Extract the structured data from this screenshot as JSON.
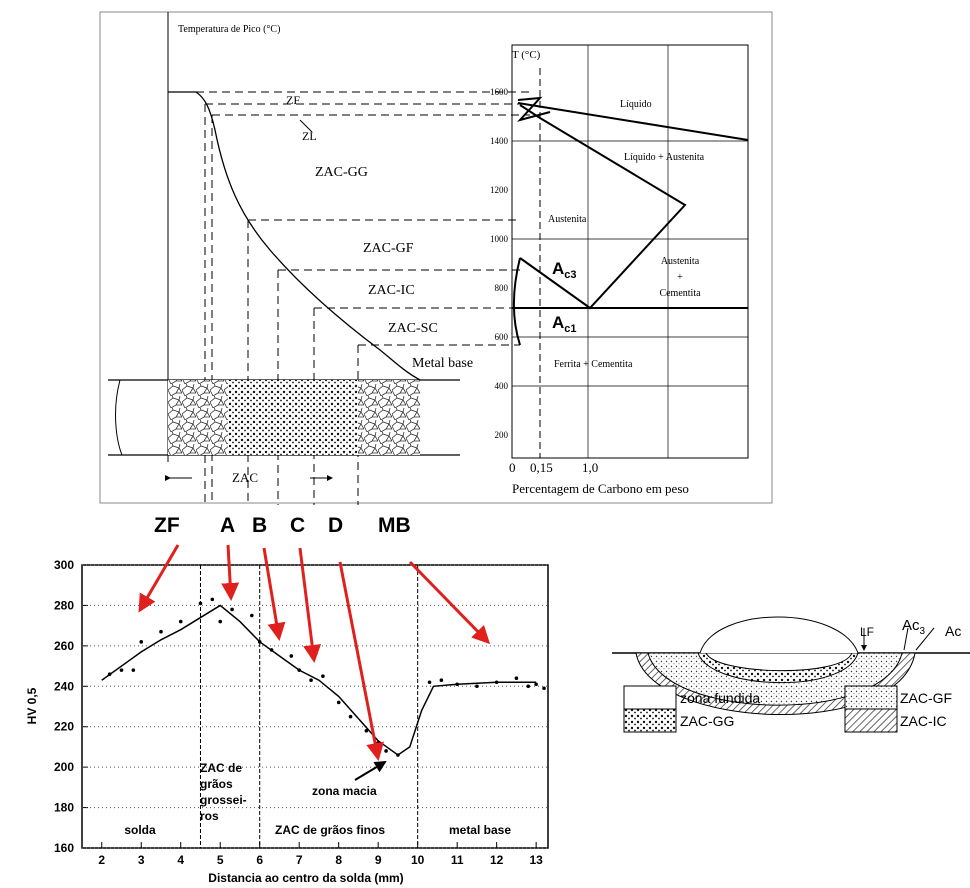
{
  "top_diagram": {
    "axis_label": "Temperatura de Pico (°C)",
    "zones": [
      "ZF",
      "ZL",
      "ZAC-GG",
      "ZAC-GF",
      "ZAC-IC",
      "ZAC-SC",
      "Metal base"
    ],
    "bottom_label": "ZAC"
  },
  "phase_diagram": {
    "y_label": "T (°C)",
    "y_tick_labels": [
      "1600",
      "1400",
      "1200",
      "1000",
      "800",
      "600",
      "400",
      "200"
    ],
    "x_tick_labels": [
      "0",
      "0,15",
      "1,0"
    ],
    "x_label": "Percentagem de Carbono em peso",
    "regions": [
      "Líquido",
      "Líquido + Austenita",
      "Austenita",
      "Austenita",
      "+",
      "Cementita",
      "Ferrita + Cementita"
    ],
    "ac3": {
      "main": "A",
      "sub": "c3"
    },
    "ac1": {
      "main": "A",
      "sub": "c1"
    }
  },
  "letters": [
    "ZF",
    "A",
    "B",
    "C",
    "D",
    "MB"
  ],
  "chart_data": {
    "type": "line",
    "x_label": "Distancia ao centro da solda (mm)",
    "y_label": "HV 0,5",
    "xlim": [
      1.5,
      13.3
    ],
    "ylim": [
      160,
      300
    ],
    "xticks": [
      2,
      3,
      4,
      5,
      6,
      7,
      8,
      9,
      10,
      11,
      12,
      13
    ],
    "yticks": [
      160,
      180,
      200,
      220,
      240,
      260,
      280,
      300
    ],
    "grid": true,
    "dividers": [
      4.5,
      6,
      10
    ],
    "region_labels": [
      "solda",
      "ZAC de",
      "grãos",
      "grossei-",
      "ros",
      "ZAC de grãos finos",
      "metal base"
    ],
    "annotation": "zona macia",
    "series": [
      {
        "style": "line",
        "color": "#000000",
        "x": [
          2,
          2.5,
          3,
          3.5,
          4,
          4.5,
          5,
          5.5,
          6,
          6.5,
          7,
          7.5,
          8,
          8.5,
          9,
          9.5,
          9.8,
          10.1,
          10.4,
          11,
          12,
          13
        ],
        "values": [
          243,
          250,
          257,
          263,
          268,
          274,
          280,
          272,
          262,
          255,
          248,
          243,
          235,
          224,
          213,
          206,
          210,
          228,
          240,
          241,
          242,
          242
        ]
      },
      {
        "style": "dots",
        "color": "#000000",
        "x": [
          2.2,
          2.5,
          2.8,
          3,
          3.5,
          4,
          4.5,
          4.8,
          5,
          5.3,
          5.8,
          6,
          6.3,
          6.8,
          7,
          7.3,
          7.6,
          8,
          8.3,
          8.7,
          9,
          9.2,
          9.5,
          10.3,
          10.6,
          11,
          11.5,
          12,
          12.5,
          12.8,
          13,
          13.2
        ],
        "values": [
          246,
          248,
          248,
          262,
          267,
          272,
          281,
          283,
          272,
          278,
          275,
          262,
          258,
          255,
          248,
          243,
          245,
          232,
          225,
          218,
          212,
          208,
          206,
          242,
          243,
          241,
          240,
          242,
          244,
          240,
          241,
          239
        ]
      }
    ]
  },
  "cross_section": {
    "labels": [
      "LF",
      "Ac",
      "Ac"
    ],
    "ac3_sub": "3",
    "legend": [
      "zona fundida",
      "ZAC-GG",
      "ZAC-GF",
      "ZAC-IC"
    ]
  }
}
